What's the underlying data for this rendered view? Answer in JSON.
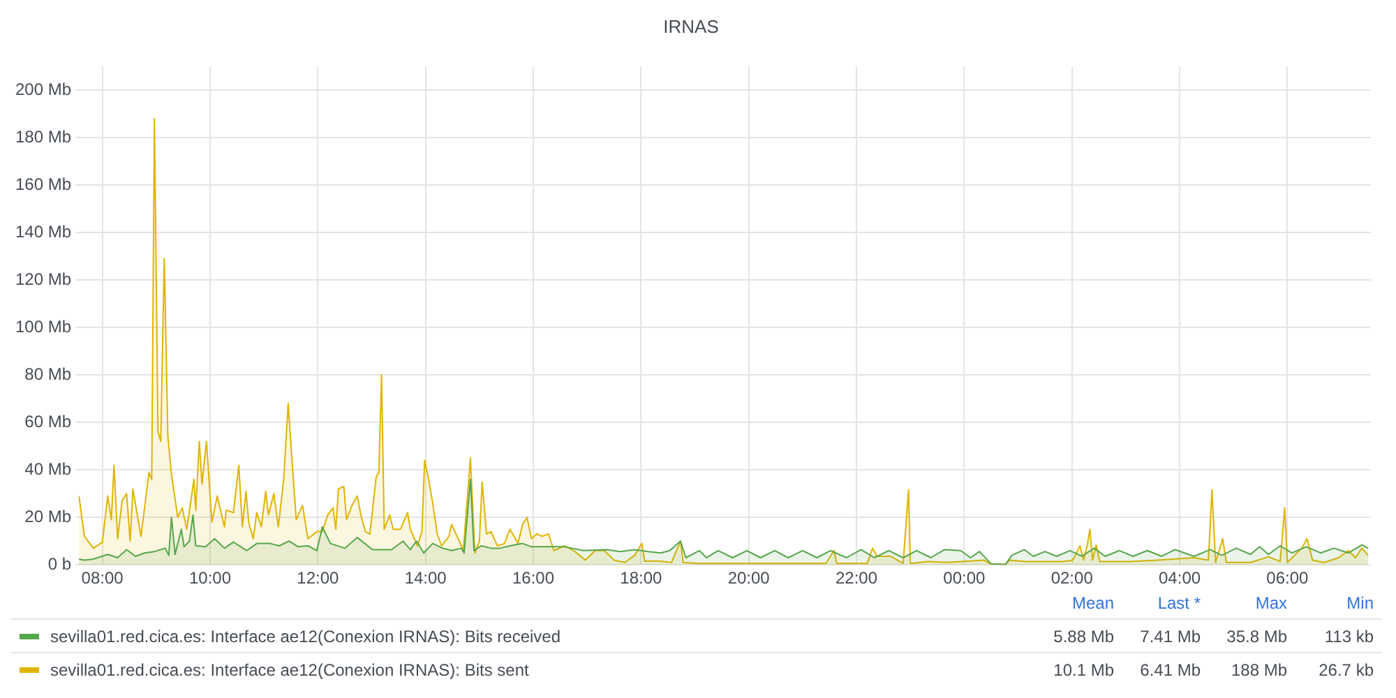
{
  "chart_data": {
    "type": "area",
    "title": "IRNAS",
    "xlim": [
      "--01-01T07:30",
      "--01-02T07:33"
    ],
    "xticks": [
      {
        "value": "--01-01T08:00",
        "label": "08:00"
      },
      {
        "value": "--01-01T10:00",
        "label": "10:00"
      },
      {
        "value": "--01-01T12:00",
        "label": "12:00"
      },
      {
        "value": "--01-01T14:00",
        "label": "14:00"
      },
      {
        "value": "--01-01T16:00",
        "label": "16:00"
      },
      {
        "value": "--01-01T18:00",
        "label": "18:00"
      },
      {
        "value": "--01-01T20:00",
        "label": "20:00"
      },
      {
        "value": "--01-01T22:00",
        "label": "22:00"
      },
      {
        "value": "--01-02T00:00",
        "label": "00:00"
      },
      {
        "value": "--01-02T02:00",
        "label": "02:00"
      },
      {
        "value": "--01-02T04:00",
        "label": "04:00"
      },
      {
        "value": "--01-02T06:00",
        "label": "06:00"
      }
    ],
    "ylim": [
      0,
      210
    ],
    "yticks": [
      {
        "value": 0,
        "label": "0 b"
      },
      {
        "value": 20,
        "label": "20 Mb"
      },
      {
        "value": 40,
        "label": "40 Mb"
      },
      {
        "value": 60,
        "label": "60 Mb"
      },
      {
        "value": 80,
        "label": "80 Mb"
      },
      {
        "value": 100,
        "label": "100 Mb"
      },
      {
        "value": 120,
        "label": "120 Mb"
      },
      {
        "value": 140,
        "label": "140 Mb"
      },
      {
        "value": 160,
        "label": "160 Mb"
      },
      {
        "value": 180,
        "label": "180 Mb"
      },
      {
        "value": 200,
        "label": "200 Mb"
      }
    ],
    "grid": true,
    "legend": "bottom",
    "series": [
      {
        "name": "sevilla01.red.cica.es: Interface ae12(Conexion IRNAS): Bits received",
        "color": "#56a64b",
        "x": [
          "--01-01T07:34",
          "--01-01T07:40",
          "--01-01T07:50",
          "--01-01T08:06",
          "--01-01T08:17",
          "--01-01T08:27",
          "--01-01T08:37",
          "--01-01T08:47",
          "--01-01T08:58",
          "--01-01T09:10",
          "--01-01T09:14",
          "--01-01T09:17",
          "--01-01T09:21",
          "--01-01T09:28",
          "--01-01T09:31",
          "--01-01T09:37",
          "--01-01T09:41",
          "--01-01T09:44",
          "--01-01T09:55",
          "--01-01T10:05",
          "--01-01T10:16",
          "--01-01T10:26",
          "--01-01T10:41",
          "--01-01T10:52",
          "--01-01T11:07",
          "--01-01T11:17",
          "--01-01T11:28",
          "--01-01T11:38",
          "--01-01T11:49",
          "--01-01T11:59",
          "--01-01T12:05",
          "--01-01T12:14",
          "--01-01T12:30",
          "--01-01T12:44",
          "--01-01T13:01",
          "--01-01T13:22",
          "--01-01T13:35",
          "--01-01T13:43",
          "--01-01T13:50",
          "--01-01T13:58",
          "--01-01T14:08",
          "--01-01T14:19",
          "--01-01T14:29",
          "--01-01T14:40",
          "--01-01T14:43",
          "--01-01T14:50",
          "--01-01T14:54",
          "--01-01T15:02",
          "--01-01T15:13",
          "--01-01T15:23",
          "--01-01T15:34",
          "--01-01T15:48",
          "--01-01T15:58",
          "--01-01T16:14",
          "--01-01T16:35",
          "--01-01T16:56",
          "--01-01T17:22",
          "--01-01T17:37",
          "--01-01T17:53",
          "--01-01T18:08",
          "--01-01T18:22",
          "--01-01T18:32",
          "--01-01T18:44",
          "--01-01T18:50",
          "--01-01T19:05",
          "--01-01T19:13",
          "--01-01T19:26",
          "--01-01T19:42",
          "--01-01T19:58",
          "--01-01T20:13",
          "--01-01T20:29",
          "--01-01T20:44",
          "--01-01T21:00",
          "--01-01T21:16",
          "--01-01T21:31",
          "--01-01T21:49",
          "--01-01T22:05",
          "--01-01T22:20",
          "--01-01T22:36",
          "--01-01T22:52",
          "--01-01T23:07",
          "--01-01T23:23",
          "--01-01T23:38",
          "--01-01T23:56",
          "--01-02T00:07",
          "--01-02T00:17",
          "--01-02T00:30",
          "--01-02T00:46",
          "--01-02T00:53",
          "--01-02T01:07",
          "--01-02T01:17",
          "--01-02T01:30",
          "--01-02T01:43",
          "--01-02T01:58",
          "--01-02T02:11",
          "--01-02T02:25",
          "--01-02T02:37",
          "--01-02T02:53",
          "--01-02T03:08",
          "--01-02T03:24",
          "--01-02T03:40",
          "--01-02T03:55",
          "--01-02T04:16",
          "--01-02T04:34",
          "--01-02T04:47",
          "--01-02T05:03",
          "--01-02T05:19",
          "--01-02T05:29",
          "--01-02T05:39",
          "--01-02T05:52",
          "--01-02T06:05",
          "--01-02T06:21",
          "--01-02T06:37",
          "--01-02T06:52",
          "--01-02T07:08",
          "--01-02T07:23",
          "--01-02T07:30"
        ],
        "values": [
          2.4,
          2,
          2.4,
          4.4,
          3,
          6.4,
          3.6,
          5,
          5.6,
          7,
          4,
          20,
          4.4,
          15,
          7.6,
          10,
          21,
          8,
          7.6,
          11,
          7,
          9.6,
          6,
          9,
          9,
          8,
          10,
          7.6,
          8,
          6,
          16,
          9,
          7,
          11.5,
          6.4,
          6.4,
          10,
          6.4,
          10,
          5,
          9,
          7,
          6,
          7,
          5,
          36,
          6,
          8,
          7,
          7,
          8,
          9,
          7.6,
          7.6,
          7.6,
          6,
          6.4,
          5.6,
          6.4,
          5.6,
          5,
          6,
          10,
          3,
          6,
          3,
          6,
          3,
          6,
          3,
          6,
          3,
          6,
          3,
          6,
          3,
          6.4,
          3,
          6,
          3,
          6,
          3,
          6.4,
          6,
          3,
          5.6,
          0.4,
          0.1,
          4,
          6.4,
          3.6,
          5.6,
          3.6,
          6,
          3.6,
          7,
          3.6,
          6,
          3.6,
          6,
          3.6,
          6.4,
          3.6,
          6.4,
          4,
          7,
          4.4,
          7.6,
          4.4,
          8,
          5,
          7.6,
          5,
          7,
          5,
          8.4,
          7
        ]
      },
      {
        "name": "sevilla01.red.cica.es: Interface ae12(Conexion IRNAS): Bits sent",
        "color": "#e0b400",
        "x": [
          "--01-01T07:34",
          "--01-01T07:40",
          "--01-01T07:50",
          "--01-01T08:00",
          "--01-01T08:06",
          "--01-01T08:10",
          "--01-01T08:13",
          "--01-01T08:17",
          "--01-01T08:22",
          "--01-01T08:27",
          "--01-01T08:31",
          "--01-01T08:34",
          "--01-01T08:43",
          "--01-01T08:52",
          "--01-01T08:55",
          "--01-01T08:58",
          "--01-01T09:02",
          "--01-01T09:05",
          "--01-01T09:09",
          "--01-01T09:13",
          "--01-01T09:17",
          "--01-01T09:24",
          "--01-01T09:29",
          "--01-01T09:34",
          "--01-01T09:42",
          "--01-01T09:44",
          "--01-01T09:48",
          "--01-01T09:51",
          "--01-01T09:56",
          "--01-01T10:02",
          "--01-01T10:08",
          "--01-01T10:16",
          "--01-01T10:18",
          "--01-01T10:26",
          "--01-01T10:32",
          "--01-01T10:36",
          "--01-01T10:40",
          "--01-01T10:43",
          "--01-01T10:48",
          "--01-01T10:52",
          "--01-01T10:57",
          "--01-01T11:02",
          "--01-01T11:05",
          "--01-01T11:11",
          "--01-01T11:16",
          "--01-01T11:22",
          "--01-01T11:27",
          "--01-01T11:32",
          "--01-01T11:36",
          "--01-01T11:43",
          "--01-01T11:49",
          "--01-01T11:59",
          "--01-01T12:05",
          "--01-01T12:11",
          "--01-01T12:17",
          "--01-01T12:20",
          "--01-01T12:23",
          "--01-01T12:29",
          "--01-01T12:32",
          "--01-01T12:38",
          "--01-01T12:44",
          "--01-01T12:48",
          "--01-01T12:53",
          "--01-01T12:58",
          "--01-01T13:05",
          "--01-01T13:08",
          "--01-01T13:11",
          "--01-01T13:14",
          "--01-01T13:20",
          "--01-01T13:24",
          "--01-01T13:32",
          "--01-01T13:40",
          "--01-01T13:43",
          "--01-01T13:51",
          "--01-01T13:56",
          "--01-01T13:59",
          "--01-01T14:03",
          "--01-01T14:08",
          "--01-01T14:13",
          "--01-01T14:18",
          "--01-01T14:26",
          "--01-01T14:29",
          "--01-01T14:40",
          "--01-01T14:42",
          "--01-01T14:50",
          "--01-01T14:55",
          "--01-01T15:00",
          "--01-01T15:03",
          "--01-01T15:08",
          "--01-01T15:13",
          "--01-01T15:20",
          "--01-01T15:28",
          "--01-01T15:34",
          "--01-01T15:43",
          "--01-01T15:48",
          "--01-01T15:53",
          "--01-01T15:58",
          "--01-01T16:04",
          "--01-01T16:10",
          "--01-01T16:17",
          "--01-01T16:23",
          "--01-01T16:35",
          "--01-01T16:45",
          "--01-01T16:58",
          "--01-01T17:09",
          "--01-01T17:19",
          "--01-01T17:30",
          "--01-01T17:42",
          "--01-01T17:53",
          "--01-01T18:01",
          "--01-01T18:04",
          "--01-01T18:19",
          "--01-01T18:34",
          "--01-01T18:44",
          "--01-01T18:47",
          "--01-01T19:05",
          "--01-01T19:42",
          "--01-01T20:34",
          "--01-01T21:26",
          "--01-01T21:35",
          "--01-01T21:38",
          "--01-01T22:12",
          "--01-01T22:18",
          "--01-01T22:23",
          "--01-01T22:38",
          "--01-01T22:52",
          "--01-01T22:58",
          "--01-01T23:00",
          "--01-01T23:20",
          "--01-01T23:41",
          "--01-02T00:22",
          "--01-02T00:30",
          "--01-02T00:46",
          "--01-02T00:51",
          "--01-02T01:09",
          "--01-02T01:50",
          "--01-02T02:01",
          "--01-02T02:09",
          "--01-02T02:13",
          "--01-02T02:17",
          "--01-02T02:20",
          "--01-02T02:23",
          "--01-02T02:27",
          "--01-02T02:31",
          "--01-02T03:04",
          "--01-02T03:35",
          "--01-02T04:16",
          "--01-02T04:32",
          "--01-02T04:36",
          "--01-02T04:40",
          "--01-02T04:48",
          "--01-02T04:52",
          "--01-02T05:19",
          "--01-02T05:39",
          "--01-02T05:52",
          "--01-02T05:57",
          "--01-02T06:00",
          "--01-02T06:08",
          "--01-02T06:16",
          "--01-02T06:22",
          "--01-02T06:28",
          "--01-02T06:41",
          "--01-02T06:57",
          "--01-02T07:08",
          "--01-02T07:16",
          "--01-02T07:23",
          "--01-02T07:30"
        ],
        "values": [
          28.9,
          12,
          7,
          9.5,
          29,
          19,
          42,
          11,
          27,
          30,
          10,
          32,
          12,
          39,
          36,
          188,
          56,
          52,
          129,
          54,
          38,
          20,
          24,
          15,
          36,
          23,
          52,
          34,
          52,
          18,
          29,
          16,
          23,
          22,
          42,
          16,
          31,
          18,
          11,
          22,
          16,
          31,
          21,
          30,
          16,
          36,
          68,
          40,
          19,
          25,
          11,
          14,
          14,
          21,
          24,
          15,
          32,
          33,
          19,
          25,
          29,
          21,
          14,
          13,
          37,
          39,
          80,
          15,
          21,
          15,
          15,
          22,
          15,
          8,
          14,
          44,
          37,
          26,
          13,
          8,
          12,
          17,
          8,
          6,
          45,
          5,
          10,
          35,
          13,
          14,
          8,
          9,
          15,
          9,
          17,
          20,
          11,
          13,
          12,
          13,
          6,
          8,
          6,
          2,
          6,
          6,
          2,
          1,
          4,
          9,
          1.6,
          1.6,
          1,
          10,
          1,
          0.6,
          0.6,
          0.6,
          0.6,
          6,
          0.6,
          0.6,
          7,
          3.6,
          3.6,
          0.6,
          31.6,
          0.6,
          1.4,
          1,
          2,
          0.2,
          0.2,
          2,
          1.4,
          1.4,
          2,
          8,
          2,
          8,
          15,
          2,
          8.4,
          1.4,
          1.4,
          2,
          3,
          2,
          31.6,
          1,
          11,
          1,
          1,
          3.4,
          1.4,
          24,
          1,
          4,
          7,
          11,
          2,
          1,
          3,
          6,
          3,
          7,
          4
        ]
      }
    ],
    "annotations": [
      "Mean",
      "Last *",
      "Max",
      "Min",
      "5.88 Mb",
      "7.41 Mb",
      "35.8 Mb",
      "113 kb",
      "10.1 Mb",
      "6.41 Mb",
      "188 Mb",
      "26.7 kb"
    ]
  }
}
